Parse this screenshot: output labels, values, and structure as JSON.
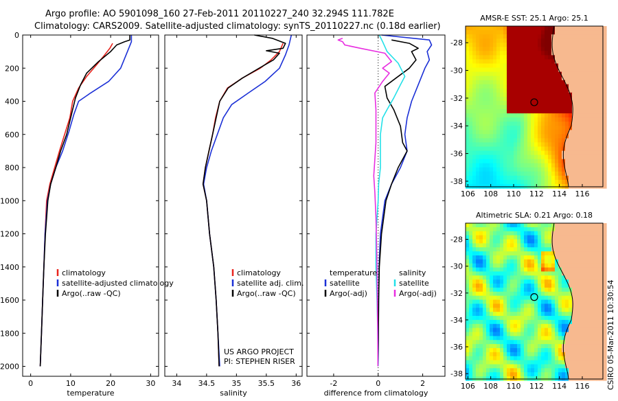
{
  "header": {
    "line1": "Argo profile: AO 5901098_160 27-Feb-2011 20110227_240 32.294S 111.782E",
    "line2": "Climatology: CARS2009. Satellite-adjusted climatology: synTS_20110227.nc (0.18d earlier)"
  },
  "side_label": "CSIRO 05-Mar-2011 10:30:54",
  "colors": {
    "clim": "#e8231c",
    "sat": "#1a2fd6",
    "argo": "#000000",
    "cyan": "#22e0e8",
    "magenta": "#e82de0",
    "land": "#f7b98f"
  },
  "chart_data": [
    {
      "type": "line",
      "xlabel": "temperature",
      "xlim": [
        -2,
        32
      ],
      "ylim": [
        0,
        2060
      ],
      "y_inverted": true,
      "xticks": [
        0,
        10,
        20,
        30
      ],
      "yticks": [
        0,
        200,
        400,
        600,
        800,
        1000,
        1200,
        1400,
        1600,
        1800,
        2000
      ],
      "legend": [
        "climatology",
        "satellite-adjusted climatology",
        "Argo(..raw -QC)"
      ],
      "series": [
        {
          "name": "climatology",
          "color": "clim",
          "points": [
            [
              20.5,
              50
            ],
            [
              19.8,
              80
            ],
            [
              18.5,
              120
            ],
            [
              16.5,
              180
            ],
            [
              14,
              250
            ],
            [
              12,
              320
            ],
            [
              10.5,
              400
            ],
            [
              9.8,
              500
            ],
            [
              8.5,
              600
            ],
            [
              7.2,
              700
            ],
            [
              6,
              800
            ],
            [
              4.8,
              900
            ],
            [
              4,
              1000
            ],
            [
              3.6,
              1200
            ],
            [
              3.3,
              1400
            ],
            [
              3.0,
              1600
            ],
            [
              2.7,
              1800
            ],
            [
              2.4,
              2000
            ]
          ]
        },
        {
          "name": "satellite-adjusted climatology",
          "color": "sat",
          "points": [
            [
              25.2,
              0
            ],
            [
              25.2,
              40
            ],
            [
              24.2,
              100
            ],
            [
              22.5,
              200
            ],
            [
              19.5,
              280
            ],
            [
              15,
              350
            ],
            [
              12,
              400
            ],
            [
              10.8,
              480
            ],
            [
              9.6,
              580
            ],
            [
              8,
              700
            ],
            [
              6.3,
              800
            ],
            [
              5,
              900
            ],
            [
              4.2,
              1000
            ],
            [
              3.6,
              1200
            ],
            [
              3.3,
              1400
            ],
            [
              3.0,
              1600
            ],
            [
              2.7,
              1800
            ],
            [
              2.4,
              2000
            ]
          ]
        },
        {
          "name": "Argo(..raw -QC)",
          "color": "argo",
          "points": [
            [
              24.8,
              0
            ],
            [
              24.8,
              30
            ],
            [
              23.5,
              40
            ],
            [
              21.5,
              60
            ],
            [
              20,
              100
            ],
            [
              17,
              160
            ],
            [
              14,
              230
            ],
            [
              12.5,
              300
            ],
            [
              11.2,
              380
            ],
            [
              10.5,
              450
            ],
            [
              9.8,
              520
            ],
            [
              9,
              600
            ],
            [
              7.5,
              700
            ],
            [
              6.3,
              800
            ],
            [
              5,
              900
            ],
            [
              4.3,
              1000
            ],
            [
              3.7,
              1200
            ],
            [
              3.3,
              1400
            ],
            [
              3.0,
              1600
            ],
            [
              2.7,
              1800
            ],
            [
              2.4,
              2000
            ]
          ]
        }
      ]
    },
    {
      "type": "line",
      "xlabel": "salinity",
      "xlim": [
        33.8,
        36.1
      ],
      "ylim": [
        0,
        2060
      ],
      "y_inverted": true,
      "xticks": [
        34,
        34.5,
        35,
        35.5,
        36
      ],
      "legend": [
        "climatology",
        "satellite adj. clim.",
        "Argo(..raw -QC)"
      ],
      "annotation": [
        "US ARGO PROJECT",
        "PI: STEPHEN RISER"
      ],
      "series": [
        {
          "name": "climatology",
          "color": "clim",
          "points": [
            [
              35.78,
              50
            ],
            [
              35.72,
              100
            ],
            [
              35.58,
              150
            ],
            [
              35.4,
              200
            ],
            [
              35.1,
              260
            ],
            [
              34.85,
              320
            ],
            [
              34.72,
              400
            ],
            [
              34.65,
              500
            ],
            [
              34.6,
              600
            ],
            [
              34.54,
              700
            ],
            [
              34.48,
              800
            ],
            [
              34.44,
              900
            ],
            [
              34.5,
              1000
            ],
            [
              34.55,
              1200
            ],
            [
              34.62,
              1400
            ],
            [
              34.66,
              1600
            ],
            [
              34.69,
              1800
            ],
            [
              34.71,
              2000
            ]
          ]
        },
        {
          "name": "satellite adj. clim.",
          "color": "sat",
          "points": [
            [
              35.92,
              0
            ],
            [
              35.88,
              60
            ],
            [
              35.82,
              120
            ],
            [
              35.72,
              200
            ],
            [
              35.48,
              280
            ],
            [
              35.2,
              350
            ],
            [
              34.92,
              420
            ],
            [
              34.78,
              500
            ],
            [
              34.68,
              600
            ],
            [
              34.58,
              700
            ],
            [
              34.5,
              800
            ],
            [
              34.45,
              900
            ],
            [
              34.5,
              1000
            ],
            [
              34.55,
              1200
            ],
            [
              34.62,
              1400
            ],
            [
              34.66,
              1600
            ],
            [
              34.69,
              1800
            ],
            [
              34.72,
              2000
            ]
          ]
        },
        {
          "name": "Argo(..raw -QC)",
          "color": "argo",
          "points": [
            [
              35.3,
              0
            ],
            [
              35.6,
              20
            ],
            [
              35.82,
              50
            ],
            [
              35.78,
              80
            ],
            [
              35.5,
              95
            ],
            [
              35.72,
              110
            ],
            [
              35.62,
              150
            ],
            [
              35.38,
              200
            ],
            [
              35.1,
              260
            ],
            [
              34.86,
              320
            ],
            [
              34.72,
              400
            ],
            [
              34.66,
              500
            ],
            [
              34.6,
              600
            ],
            [
              34.54,
              700
            ],
            [
              34.48,
              800
            ],
            [
              34.44,
              900
            ],
            [
              34.5,
              1000
            ],
            [
              34.55,
              1200
            ],
            [
              34.62,
              1400
            ],
            [
              34.66,
              1600
            ],
            [
              34.69,
              1800
            ],
            [
              34.71,
              2000
            ]
          ]
        }
      ]
    },
    {
      "type": "line",
      "xlabel": "difference from climatology",
      "xlim": [
        -3.2,
        3.0
      ],
      "ylim": [
        0,
        2060
      ],
      "y_inverted": true,
      "xticks": [
        -2,
        0,
        2
      ],
      "zero_line": true,
      "legend_left": [
        "temperature",
        "satellite",
        "Argo(-adj)"
      ],
      "legend_right": [
        "salinity",
        "satellite",
        "Argo(-adj)"
      ],
      "series": [
        {
          "name": "temperature satellite",
          "color": "sat",
          "points": [
            [
              0.15,
              0
            ],
            [
              2.3,
              30
            ],
            [
              2.4,
              60
            ],
            [
              2.2,
              100
            ],
            [
              2.3,
              150
            ],
            [
              2.1,
              200
            ],
            [
              1.8,
              300
            ],
            [
              1.5,
              400
            ],
            [
              1.3,
              500
            ],
            [
              1.2,
              600
            ],
            [
              1.3,
              700
            ],
            [
              1.0,
              800
            ],
            [
              0.6,
              900
            ],
            [
              0.3,
              1000
            ],
            [
              0.1,
              1200
            ],
            [
              0.04,
              1400
            ],
            [
              0.02,
              1600
            ],
            [
              0.01,
              1800
            ],
            [
              0,
              2000
            ]
          ]
        },
        {
          "name": "temperature Argo(-adj)",
          "color": "argo",
          "points": [
            [
              0.6,
              30
            ],
            [
              1.4,
              50
            ],
            [
              1.8,
              80
            ],
            [
              1.5,
              100
            ],
            [
              1.7,
              150
            ],
            [
              1.4,
              200
            ],
            [
              0.8,
              260
            ],
            [
              0.3,
              310
            ],
            [
              0.4,
              380
            ],
            [
              0.7,
              450
            ],
            [
              1.0,
              550
            ],
            [
              1.1,
              650
            ],
            [
              1.3,
              700
            ],
            [
              0.9,
              800
            ],
            [
              0.6,
              900
            ],
            [
              0.35,
              1000
            ],
            [
              0.15,
              1200
            ],
            [
              0.05,
              1400
            ],
            [
              0.02,
              1600
            ],
            [
              0.01,
              1800
            ],
            [
              0,
              2000
            ]
          ]
        },
        {
          "name": "salinity satellite",
          "color": "cyan",
          "points": [
            [
              0.05,
              0
            ],
            [
              0.2,
              40
            ],
            [
              0.4,
              100
            ],
            [
              0.9,
              170
            ],
            [
              1.2,
              250
            ],
            [
              1.0,
              300
            ],
            [
              0.7,
              380
            ],
            [
              0.4,
              450
            ],
            [
              0.2,
              500
            ],
            [
              0.1,
              600
            ],
            [
              0.1,
              700
            ],
            [
              0.1,
              800
            ],
            [
              0.02,
              900
            ],
            [
              0,
              1000
            ],
            [
              -0.1,
              1200
            ],
            [
              -0.1,
              1400
            ],
            [
              -0.05,
              1600
            ],
            [
              -0.02,
              1800
            ],
            [
              0,
              2000
            ]
          ]
        },
        {
          "name": "salinity Argo(-adj)",
          "color": "magenta",
          "points": [
            [
              -1.6,
              20
            ],
            [
              -1.8,
              30
            ],
            [
              -1.6,
              40
            ],
            [
              -1.5,
              60
            ],
            [
              -0.8,
              80
            ],
            [
              0.3,
              110
            ],
            [
              0.6,
              160
            ],
            [
              0.2,
              200
            ],
            [
              0.5,
              230
            ],
            [
              0.2,
              280
            ],
            [
              -0.15,
              350
            ],
            [
              -0.1,
              450
            ],
            [
              -0.1,
              550
            ],
            [
              -0.1,
              650
            ],
            [
              -0.15,
              750
            ],
            [
              -0.2,
              850
            ],
            [
              -0.15,
              950
            ],
            [
              -0.1,
              1100
            ],
            [
              -0.05,
              1400
            ],
            [
              -0.03,
              1700
            ],
            [
              -0.01,
              2000
            ]
          ]
        }
      ]
    },
    {
      "type": "heatmap",
      "title": "AMSR-E SST: 25.1  Argo: 25.1",
      "xlim": [
        105.8,
        117.8
      ],
      "ylim": [
        -38.4,
        -26.8
      ],
      "xticks": [
        106,
        108,
        110,
        112,
        114,
        116
      ],
      "yticks": [
        -28,
        -30,
        -32,
        -34,
        -36,
        -38
      ],
      "profile_position": [
        111.8,
        -32.3
      ]
    },
    {
      "type": "heatmap",
      "title": "Altimetric SLA: 0.21  Argo: 0.18",
      "xlim": [
        105.8,
        117.8
      ],
      "ylim": [
        -38.4,
        -26.8
      ],
      "xticks": [
        106,
        108,
        110,
        112,
        114,
        116
      ],
      "yticks": [
        -28,
        -30,
        -32,
        -34,
        -36,
        -38
      ],
      "profile_position": [
        111.8,
        -32.3
      ]
    }
  ]
}
